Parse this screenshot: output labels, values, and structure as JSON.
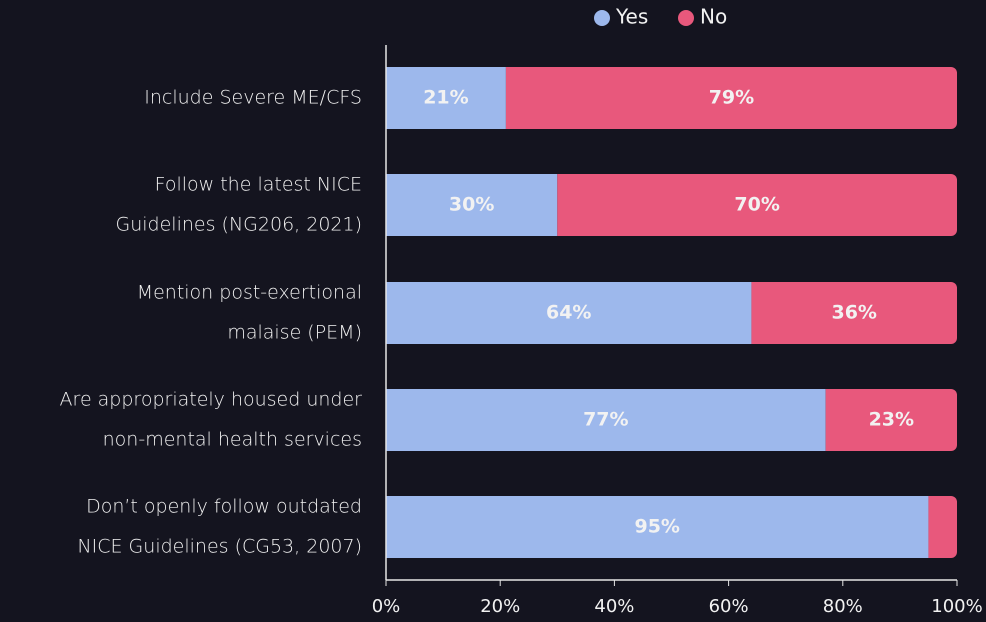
{
  "chart_data": {
    "type": "stacked-barh",
    "categories": [
      [
        "Include Severe ME/CFS"
      ],
      [
        "Follow the latest NICE",
        "Guidelines (NG206, 2021)"
      ],
      [
        "Mention post-exertional",
        "malaise (PEM)"
      ],
      [
        "Are appropriately housed under",
        "non-mental health services"
      ],
      [
        "Don’t openly follow outdated",
        "NICE Guidelines (CG53, 2007)"
      ]
    ],
    "series": [
      {
        "name": "Yes",
        "color": "#9db8ec",
        "values": [
          21,
          30,
          64,
          77,
          95
        ],
        "value_labels": [
          "21%",
          "30%",
          "64%",
          "77%",
          "95%"
        ]
      },
      {
        "name": "No",
        "color": "#e8587c",
        "values": [
          79,
          70,
          36,
          23,
          5
        ],
        "value_labels": [
          "79%",
          "70%",
          "36%",
          "23%",
          null
        ]
      }
    ],
    "xlim": [
      0,
      100
    ],
    "xticks": [
      {
        "value": 0,
        "label": "0%"
      },
      {
        "value": 20,
        "label": "20%"
      },
      {
        "value": 40,
        "label": "40%"
      },
      {
        "value": 60,
        "label": "60%"
      },
      {
        "value": 80,
        "label": "80%"
      },
      {
        "value": 100,
        "label": "100%"
      }
    ],
    "legend": "top"
  }
}
